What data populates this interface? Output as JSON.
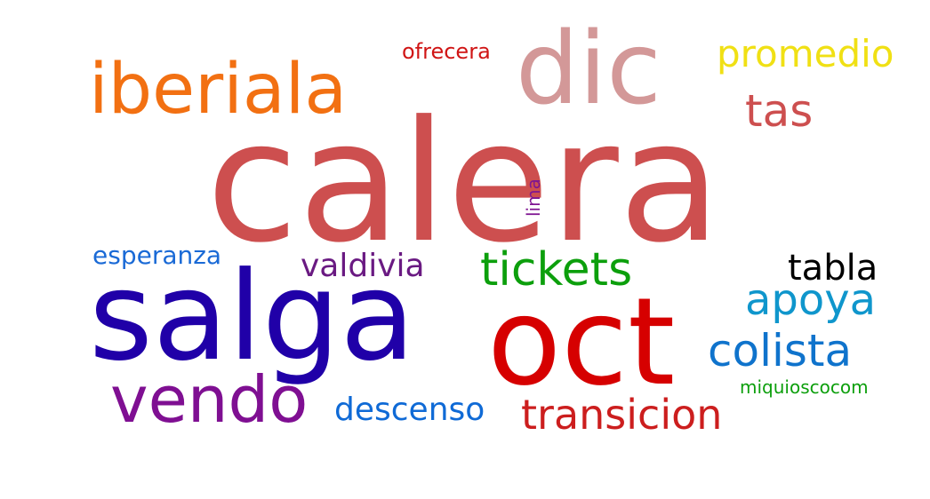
{
  "words": {
    "calera": {
      "text": "calera",
      "color": "#cd4f4f"
    },
    "salga": {
      "text": "salga",
      "color": "#2000a8"
    },
    "oct": {
      "text": "oct",
      "color": "#d60000"
    },
    "dic": {
      "text": "dic",
      "color": "#d39898"
    },
    "iberiala": {
      "text": "iberiala",
      "color": "#f27012"
    },
    "vendo": {
      "text": "vendo",
      "color": "#7f0f92"
    },
    "tickets": {
      "text": "tickets",
      "color": "#0c9f0c"
    },
    "transicion": {
      "text": "transicion",
      "color": "#cc1e1e"
    },
    "colista": {
      "text": "colista",
      "color": "#0f73cc"
    },
    "apoya": {
      "text": "apoya",
      "color": "#0f96cc"
    },
    "tas": {
      "text": "tas",
      "color": "#cd4f4f"
    },
    "promedio": {
      "text": "promedio",
      "color": "#f0e014"
    },
    "tabla": {
      "text": "tabla",
      "color": "#000000"
    },
    "valdivia": {
      "text": "valdivia",
      "color": "#6a1a82"
    },
    "descenso": {
      "text": "descenso",
      "color": "#0f6ad6"
    },
    "esperanza": {
      "text": "esperanza",
      "color": "#1a6ad6"
    },
    "ofrecera": {
      "text": "ofrecera",
      "color": "#d01515"
    },
    "miquioscocom": {
      "text": "miquioscocom",
      "color": "#0c9f0c"
    },
    "lima": {
      "text": "lima",
      "color": "#7f1592"
    }
  }
}
